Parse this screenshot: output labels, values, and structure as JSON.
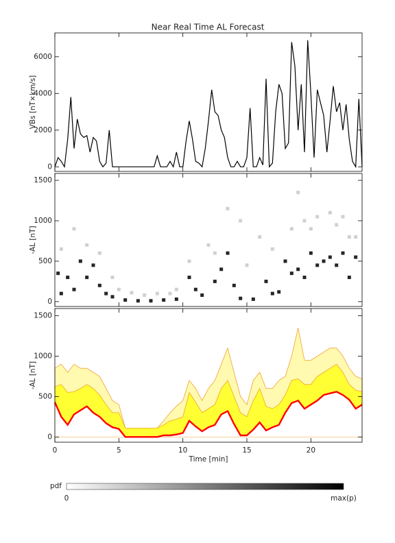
{
  "title": "Near Real Time AL Forecast",
  "chart_data": [
    {
      "type": "line",
      "ylabel": "VBs [nT×km/s]",
      "xlim": [
        0,
        24
      ],
      "xticks": [
        0,
        5,
        10,
        15,
        20
      ],
      "ylim": [
        -250,
        7300
      ],
      "yticks": [
        0,
        2000,
        4000,
        6000
      ],
      "x": [
        0,
        0.25,
        0.5,
        0.75,
        1,
        1.25,
        1.5,
        1.75,
        2,
        2.25,
        2.5,
        2.75,
        3,
        3.25,
        3.5,
        3.75,
        4,
        4.25,
        4.5,
        4.75,
        5,
        5.25,
        5.5,
        5.75,
        6,
        6.25,
        6.5,
        6.75,
        7,
        7.25,
        7.5,
        7.75,
        8,
        8.25,
        8.5,
        8.75,
        9,
        9.25,
        9.5,
        9.75,
        10,
        10.25,
        10.5,
        10.75,
        11,
        11.25,
        11.5,
        11.75,
        12,
        12.25,
        12.5,
        12.75,
        13,
        13.25,
        13.5,
        13.75,
        14,
        14.25,
        14.5,
        14.75,
        15,
        15.25,
        15.5,
        15.75,
        16,
        16.25,
        16.5,
        16.75,
        17,
        17.25,
        17.5,
        17.75,
        18,
        18.25,
        18.5,
        18.75,
        19,
        19.25,
        19.5,
        19.75,
        20,
        20.25,
        20.5,
        20.75,
        21,
        21.25,
        21.5,
        21.75,
        22,
        22.25,
        22.5,
        22.75,
        23,
        23.25,
        23.5,
        23.75,
        24
      ],
      "series": [
        {
          "color": "#000000",
          "values": [
            0,
            500,
            300,
            0,
            1500,
            3800,
            1000,
            2600,
            1800,
            1600,
            1700,
            800,
            1600,
            1400,
            300,
            0,
            200,
            2000,
            0,
            0,
            0,
            0,
            0,
            0,
            0,
            0,
            0,
            0,
            0,
            0,
            0,
            0,
            600,
            0,
            0,
            0,
            300,
            0,
            800,
            0,
            0,
            1400,
            2500,
            1500,
            300,
            200,
            0,
            1000,
            2500,
            4200,
            3000,
            2800,
            2000,
            1600,
            500,
            0,
            0,
            300,
            0,
            0,
            500,
            3200,
            0,
            0,
            500,
            100,
            4800,
            0,
            200,
            3000,
            4500,
            4000,
            1000,
            1300,
            6800,
            5500,
            2000,
            4500,
            800,
            6900,
            4000,
            500,
            4200,
            3500,
            2800,
            800,
            2500,
            4400,
            3000,
            3500,
            2000,
            3400,
            1500,
            300,
            0,
            3700,
            0
          ]
        }
      ]
    },
    {
      "type": "scatter",
      "ylabel": "-AL [nT]",
      "xlim": [
        0,
        24
      ],
      "xticks": [
        0,
        5,
        10,
        15,
        20
      ],
      "ylim": [
        -60,
        1585
      ],
      "yticks": [
        0,
        500,
        1000,
        1500
      ],
      "series": [
        {
          "color": "#c8c8c8",
          "x": [
            0.5,
            1.5,
            2.5,
            3.5,
            4.5,
            5,
            6,
            7,
            8,
            9,
            9.5,
            10.5,
            12,
            12.5,
            13.5,
            14.5,
            15,
            16,
            17,
            18.5,
            19,
            19.5,
            20,
            20.5,
            21.5,
            22,
            22.5,
            23,
            23.5
          ],
          "values": [
            650,
            900,
            700,
            600,
            300,
            150,
            110,
            80,
            100,
            100,
            150,
            500,
            700,
            600,
            1150,
            1000,
            450,
            800,
            650,
            900,
            1350,
            1000,
            900,
            1050,
            1100,
            950,
            1050,
            800,
            800
          ]
        },
        {
          "color": "#000000",
          "x": [
            0.25,
            0.5,
            1,
            1.5,
            2,
            2.5,
            3,
            3.5,
            4,
            4.5,
            5.5,
            6.5,
            7.5,
            8.5,
            9.5,
            10.5,
            11,
            11.5,
            12.5,
            13,
            13.5,
            14,
            14.5,
            15.5,
            16.5,
            17,
            17.5,
            18,
            18.5,
            19,
            19.5,
            20,
            20.5,
            21,
            21.5,
            22,
            22.5,
            23,
            23.5
          ],
          "values": [
            350,
            100,
            300,
            150,
            500,
            300,
            450,
            200,
            100,
            60,
            20,
            10,
            10,
            20,
            30,
            300,
            150,
            80,
            250,
            400,
            600,
            200,
            40,
            30,
            250,
            100,
            120,
            500,
            350,
            400,
            300,
            600,
            450,
            500,
            550,
            450,
            600,
            300,
            550
          ]
        }
      ]
    },
    {
      "type": "area",
      "ylabel": "-AL [nT]",
      "xlabel": "Time [min]",
      "xlim": [
        0,
        24
      ],
      "xticks": [
        0,
        5,
        10,
        15,
        20
      ],
      "ylim": [
        -65,
        1590
      ],
      "yticks": [
        0,
        500,
        1000,
        1500
      ],
      "outline": "#f0a030",
      "x": [
        0,
        0.5,
        1,
        1.5,
        2,
        2.5,
        3,
        3.5,
        4,
        4.5,
        5,
        5.5,
        6,
        6.5,
        7,
        7.5,
        8,
        8.5,
        9,
        9.5,
        10,
        10.5,
        11,
        11.5,
        12,
        12.5,
        13,
        13.5,
        14,
        14.5,
        15,
        15.5,
        16,
        16.5,
        17,
        17.5,
        18,
        18.5,
        19,
        19.5,
        20,
        20.5,
        21,
        21.5,
        22,
        22.5,
        23,
        23.5,
        24
      ],
      "series": [
        {
          "color": "#fffab0",
          "fill": true,
          "values": [
            850,
            900,
            800,
            900,
            850,
            850,
            800,
            750,
            600,
            450,
            400,
            110,
            110,
            110,
            110,
            110,
            110,
            200,
            300,
            380,
            450,
            700,
            600,
            450,
            600,
            700,
            900,
            1100,
            800,
            500,
            400,
            700,
            800,
            600,
            600,
            700,
            750,
            1000,
            1350,
            950,
            950,
            1000,
            1050,
            1100,
            1100,
            1000,
            850,
            750,
            720
          ]
        },
        {
          "color": "#ffff33",
          "fill": true,
          "values": [
            620,
            650,
            550,
            560,
            600,
            650,
            600,
            520,
            400,
            300,
            300,
            110,
            110,
            110,
            110,
            110,
            110,
            150,
            200,
            220,
            250,
            550,
            430,
            300,
            350,
            400,
            600,
            700,
            500,
            300,
            250,
            450,
            600,
            380,
            350,
            400,
            520,
            700,
            720,
            650,
            650,
            750,
            800,
            850,
            900,
            800,
            650,
            580,
            560
          ]
        },
        {
          "color": "#ff0000",
          "fill": false,
          "values": [
            430,
            250,
            150,
            280,
            330,
            380,
            300,
            250,
            170,
            120,
            100,
            0,
            0,
            0,
            0,
            0,
            0,
            20,
            20,
            30,
            50,
            200,
            130,
            70,
            120,
            150,
            280,
            320,
            160,
            20,
            20,
            90,
            180,
            80,
            120,
            150,
            300,
            420,
            450,
            350,
            400,
            450,
            520,
            540,
            560,
            520,
            460,
            350,
            400
          ]
        }
      ]
    }
  ],
  "colorbar": {
    "label": "pdf",
    "min_label": "0",
    "max_label": "max(p)"
  }
}
